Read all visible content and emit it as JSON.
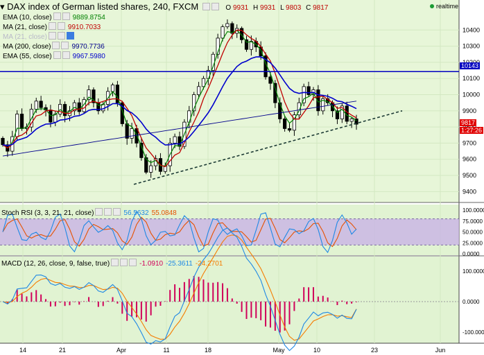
{
  "header": {
    "title": "DAX index of German listed shares, 240, FXCM",
    "ohlc": {
      "o_label": "O",
      "o": "9931",
      "h_label": "H",
      "h": "9931",
      "l_label": "L",
      "l": "9803",
      "c_label": "C",
      "c": "9817"
    },
    "realtime": "realtime"
  },
  "legends": [
    {
      "label": "EMA (10, close)",
      "value": "9889.8754",
      "color": "#008000"
    },
    {
      "label": "MA (21, close)",
      "value": "9910.7033",
      "color": "#c00000"
    },
    {
      "label": "MA (21, close)",
      "value": "",
      "color": "#a0a0c0"
    },
    {
      "label": "MA (200, close)",
      "value": "9970.7736",
      "color": "#00008b"
    },
    {
      "label": "EMA (55, close)",
      "value": "9967.5980",
      "color": "#0000cd"
    }
  ],
  "price_tags": {
    "hline": "10143",
    "last": "9817",
    "countdown": "1:27:26"
  },
  "colors": {
    "bg_main": "#e7f6d8",
    "bg_sub": "#e1f3d2",
    "rsi_band": "#c9b3e6",
    "up": "#ffffff",
    "down": "#000000",
    "hline": "#0000c0",
    "trend": "#1d3b35"
  },
  "stoch": {
    "label": "Stoch RSI (3, 3, 21, 21, close)",
    "k": "56.5632",
    "d": "55.0848",
    "k_color": "#1e88e5",
    "d_color": "#e65100"
  },
  "macd": {
    "label": "MACD (12, 26, close, 9, false, true)",
    "hist": "-1.0910",
    "macd": "-25.3611",
    "signal": "-24.2701",
    "hist_color": "#d0005a",
    "macd_color": "#1e88e5",
    "signal_color": "#f57c00"
  },
  "chart_data": [
    {
      "type": "candlestick",
      "title": "DAX index of German listed shares, 240, FXCM",
      "ylim": [
        9350,
        10500
      ],
      "yticks": [
        9400,
        9500,
        9600,
        9700,
        9800,
        9900,
        10000,
        10100,
        10200,
        10300,
        10400
      ],
      "x_ticks": [
        "14",
        "21",
        "Apr",
        "11",
        "18",
        "May",
        "10",
        "23",
        "Jun"
      ],
      "horizontal_line": 10143,
      "close_path": [
        9690,
        9650,
        9740,
        9880,
        9790,
        9800,
        9910,
        9960,
        9920,
        9905,
        9830,
        9880,
        9940,
        9870,
        9900,
        9950,
        9895,
        9970,
        10030,
        9950,
        9900,
        9940,
        10020,
        10060,
        9950,
        9820,
        9730,
        9790,
        9700,
        9610,
        9520,
        9560,
        9605,
        9525,
        9560,
        9700,
        9740,
        9680,
        9830,
        9900,
        10000,
        10050,
        10100,
        10150,
        10250,
        10350,
        10420,
        10440,
        10380,
        10410,
        10340,
        10280,
        10330,
        10295,
        10240,
        10110,
        10070,
        9950,
        9850,
        9790,
        9780,
        9875,
        9950,
        10050,
        10000,
        10030,
        9900,
        9975,
        9950,
        9900,
        9850,
        9930,
        9835,
        9850,
        9817
      ],
      "overlays": [
        "EMA (10, close)",
        "MA (21, close)",
        "EMA (55, close)",
        "MA (200, close)"
      ]
    },
    {
      "type": "line",
      "title": "Stoch RSI (3, 3, 21, 21, close)",
      "ylim": [
        0,
        100
      ],
      "yticks": [
        0,
        25,
        50,
        75,
        100
      ],
      "band": [
        20,
        80
      ],
      "k": 56.5632,
      "d": 55.0848
    },
    {
      "type": "bar",
      "title": "MACD (12, 26, close, 9, false, true)",
      "ylim": [
        -130,
        130
      ],
      "yticks": [
        -100,
        0,
        100
      ],
      "hist": -1.091,
      "macd": -25.3611,
      "signal": -24.2701
    }
  ],
  "axis_labels": {
    "main": [
      "10400",
      "10300",
      "10200",
      "10100",
      "10000",
      "9900",
      "9800",
      "9700",
      "9600",
      "9500",
      "9400"
    ],
    "stoch": [
      "100.0000",
      "75.0000",
      "50.0000",
      "25.0000",
      "0.0000"
    ],
    "macd": [
      "100.0000",
      "0.0000",
      "-100.0000"
    ]
  }
}
